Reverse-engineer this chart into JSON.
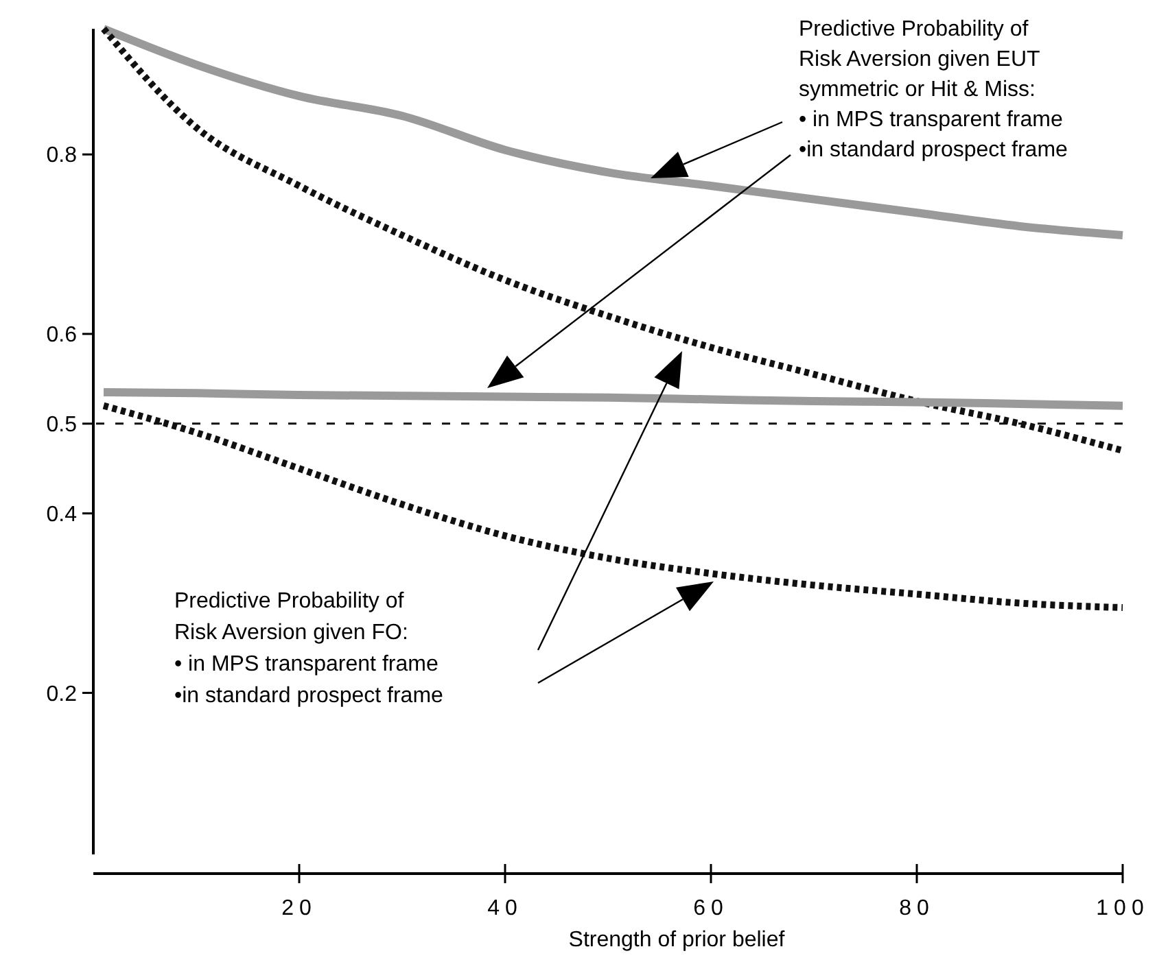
{
  "chart_data": {
    "type": "line",
    "xlabel": "Strength of prior belief",
    "x": [
      1,
      10,
      20,
      30,
      40,
      50,
      60,
      70,
      80,
      90,
      100
    ],
    "series": [
      {
        "color": "#9a9a9a",
        "line_style": "solid",
        "values": [
          0.94,
          0.9,
          0.865,
          0.843,
          0.805,
          0.78,
          0.765,
          0.75,
          0.735,
          0.72,
          0.71
        ]
      },
      {
        "color": "#111111",
        "line_style": "dotted",
        "values": [
          0.94,
          0.83,
          0.765,
          0.71,
          0.66,
          0.62,
          0.585,
          0.555,
          0.525,
          0.5,
          0.47
        ]
      },
      {
        "color": "#9a9a9a",
        "line_style": "solid",
        "values": [
          0.535,
          0.534,
          0.532,
          0.531,
          0.53,
          0.529,
          0.527,
          0.525,
          0.524,
          0.522,
          0.52
        ]
      },
      {
        "color": "#111111",
        "line_style": "dotted",
        "values": [
          0.52,
          0.49,
          0.45,
          0.41,
          0.375,
          0.35,
          0.333,
          0.32,
          0.31,
          0.3,
          0.295
        ]
      }
    ],
    "xlim": [
      0,
      100
    ],
    "xticks": [
      20,
      40,
      60,
      80,
      100
    ],
    "ylim": [
      0.02,
      0.94
    ],
    "yticks": [
      0.2,
      0.4,
      0.5,
      0.6,
      0.8
    ],
    "ref_lines": [
      {
        "axis": "y",
        "value": 0.5,
        "line_style": "dashed",
        "color": "#111111"
      }
    ],
    "annotations": [
      "Predictive Probability of\nRisk Aversion given EUT\nsymmetric or Hit & Miss:\n• in MPS transparent frame\n•in standard prospect frame",
      "Predictive Probability of\nRisk Aversion given FO:\n• in MPS transparent frame\n•in standard prospect frame"
    ],
    "marker": "none",
    "grid": false
  }
}
